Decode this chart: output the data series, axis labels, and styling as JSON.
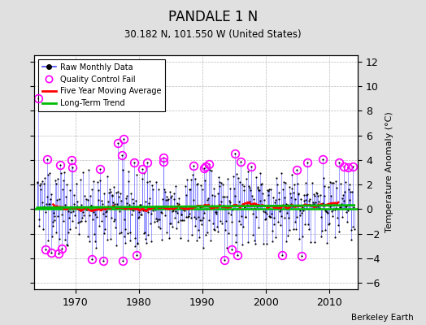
{
  "title": "PANDALE 1 N",
  "subtitle": "30.182 N, 101.550 W (United States)",
  "ylabel": "Temperature Anomaly (°C)",
  "credit": "Berkeley Earth",
  "xlim": [
    1963.5,
    2014.5
  ],
  "ylim": [
    -6.5,
    12.5
  ],
  "yticks": [
    -6,
    -4,
    -2,
    0,
    2,
    4,
    6,
    8,
    10,
    12
  ],
  "xticks": [
    1970,
    1980,
    1990,
    2000,
    2010
  ],
  "bg_color": "#e0e0e0",
  "plot_bg_color": "#ffffff",
  "raw_line_color": "#4444ff",
  "raw_dot_color": "#000000",
  "qc_color": "#ff00ff",
  "moving_avg_color": "#ff0000",
  "trend_color": "#00bb00",
  "zero_line_color": "#00bb00",
  "grid_color": "#bbbbbb",
  "seed": 137
}
